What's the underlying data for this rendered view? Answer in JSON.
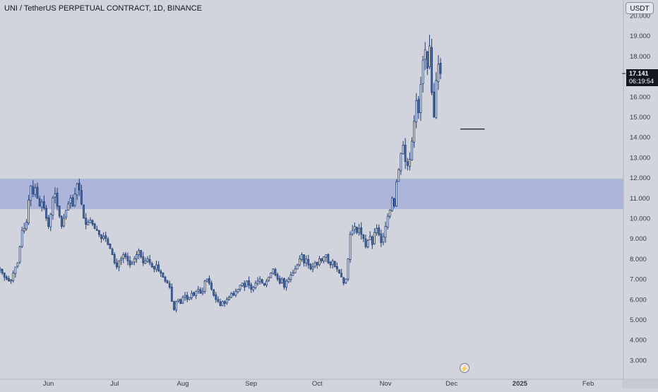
{
  "header": {
    "title": "UNI / TetherUS PERPETUAL CONTRACT, 1D, BINANCE",
    "currency": "USDT"
  },
  "price_label": {
    "price": "17.141",
    "countdown": "06:19:54",
    "color": "#131722"
  },
  "bolt_icon": "lightning-icon",
  "colors": {
    "background": "#d1d4dc",
    "zone": "#a9b3d9",
    "candle_fill": "#4b6fa8",
    "candle_wick": "#1f3b73",
    "axis_text": "#363a45"
  },
  "chart_data": {
    "type": "candlestick",
    "title": "UNI / TetherUS PERPETUAL CONTRACT, 1D, BINANCE",
    "ylabel": "USDT",
    "ylim": [
      2.5,
      20.0
    ],
    "y_ticks": [
      "20.000",
      "19.000",
      "18.000",
      "17.000",
      "16.000",
      "15.000",
      "14.000",
      "13.000",
      "12.000",
      "11.000",
      "10.000",
      "9.000",
      "8.000",
      "7.000",
      "6.000",
      "5.000",
      "4.000",
      "3.000"
    ],
    "y_tick_values": [
      20,
      19,
      18,
      17,
      16,
      15,
      14,
      13,
      12,
      11,
      10,
      9,
      8,
      7,
      6,
      5,
      4,
      3
    ],
    "x_ticks": [
      "Jun",
      "Jul",
      "Aug",
      "Sep",
      "Oct",
      "Nov",
      "Dec",
      "2025",
      "Feb"
    ],
    "x_tick_dates": [
      "2024-06-01",
      "2024-07-01",
      "2024-08-01",
      "2024-09-01",
      "2024-10-01",
      "2024-11-01",
      "2024-12-01",
      "2025-01-01",
      "2025-02-01"
    ],
    "x_range": [
      "2024-05-10",
      "2025-02-17"
    ],
    "grid": false,
    "zone": {
      "y_from": 10.45,
      "y_to": 11.95
    },
    "reference_line": {
      "value": 14.4,
      "date_from": "2024-12-05",
      "date_to": "2024-12-16"
    },
    "last_price": 17.141,
    "series_start": "2024-05-10",
    "closes": [
      7.5,
      7.3,
      7.1,
      7.0,
      6.9,
      6.95,
      7.3,
      7.6,
      7.8,
      8.6,
      9.4,
      9.5,
      9.8,
      10.9,
      11.6,
      11.2,
      11.5,
      11.0,
      10.6,
      10.8,
      10.5,
      10.0,
      9.6,
      10.2,
      11.0,
      11.2,
      10.6,
      10.1,
      9.6,
      10.0,
      10.4,
      10.7,
      11.0,
      10.6,
      11.2,
      11.7,
      11.4,
      10.7,
      10.0,
      9.7,
      9.8,
      9.9,
      9.7,
      9.5,
      9.4,
      9.2,
      9.0,
      9.1,
      9.0,
      8.7,
      8.5,
      8.2,
      7.8,
      7.6,
      7.9,
      8.0,
      8.2,
      8.1,
      7.9,
      7.7,
      7.8,
      8.0,
      8.2,
      8.4,
      8.1,
      7.8,
      7.9,
      8.0,
      7.8,
      7.6,
      7.5,
      7.7,
      7.4,
      7.3,
      7.1,
      6.9,
      6.8,
      6.6,
      5.9,
      5.5,
      5.9,
      6.0,
      5.8,
      6.1,
      6.2,
      6.0,
      6.1,
      6.3,
      6.2,
      6.4,
      6.5,
      6.3,
      6.4,
      6.9,
      7.0,
      6.8,
      6.5,
      6.2,
      6.0,
      5.9,
      5.7,
      5.9,
      5.8,
      6.0,
      6.1,
      6.3,
      6.2,
      6.4,
      6.5,
      6.7,
      6.8,
      6.6,
      6.9,
      6.7,
      6.5,
      6.6,
      6.8,
      6.9,
      7.0,
      6.8,
      6.7,
      6.9,
      7.1,
      7.3,
      7.5,
      7.2,
      7.0,
      6.8,
      7.0,
      6.6,
      6.9,
      7.0,
      7.2,
      7.3,
      7.5,
      7.7,
      8.0,
      8.2,
      7.8,
      8.0,
      7.7,
      7.5,
      7.6,
      7.8,
      7.7,
      8.0,
      7.9,
      8.1,
      8.2,
      7.8,
      7.7,
      7.9,
      7.6,
      7.5,
      7.3,
      7.1,
      6.8,
      7.0,
      8.0,
      9.2,
      9.4,
      9.6,
      9.3,
      9.5,
      9.2,
      9.0,
      8.6,
      8.9,
      9.1,
      8.7,
      9.3,
      9.5,
      9.2,
      8.8,
      9.1,
      9.6,
      10.1,
      10.4,
      11.0,
      10.6,
      11.8,
      12.4,
      13.2,
      13.6,
      12.8,
      12.6,
      12.9,
      13.8,
      14.8,
      15.8,
      15.2,
      16.6,
      17.8,
      18.3,
      17.4,
      18.5,
      16.2,
      15.0,
      16.8,
      17.6,
      17.141
    ]
  }
}
